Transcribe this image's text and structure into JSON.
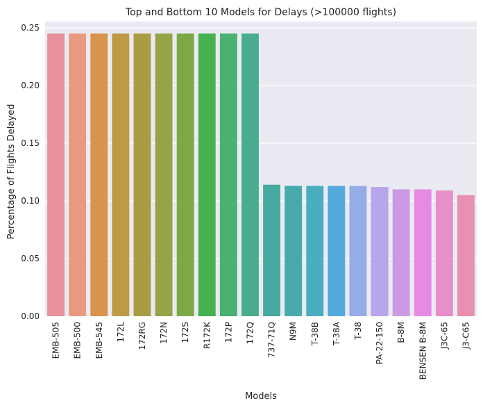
{
  "chart_data": {
    "type": "bar",
    "title": "Top and Bottom 10 Models for Delays (>100000 flights)",
    "xlabel": "Models",
    "ylabel": "Percentage of Flights Delayed",
    "ylim": [
      0,
      0.25
    ],
    "yticks": [
      "0.00",
      "0.05",
      "0.10",
      "0.15",
      "0.20",
      "0.25"
    ],
    "grid": true,
    "categories": [
      "EMB-505",
      "EMB-500",
      "EMB-545",
      "172L",
      "172RG",
      "172N",
      "172S",
      "R172K",
      "172P",
      "172Q",
      "737-71Q",
      "N9M",
      "T-38B",
      "T-38A",
      "T-38",
      "PA-22-150",
      "B-8M",
      "BENSEN B-8M",
      "J3C-65",
      "J3-C65"
    ],
    "values": [
      0.245,
      0.245,
      0.245,
      0.245,
      0.245,
      0.245,
      0.245,
      0.245,
      0.245,
      0.245,
      0.114,
      0.113,
      0.113,
      0.113,
      0.113,
      0.112,
      0.11,
      0.11,
      0.109,
      0.105
    ],
    "colors": [
      "#E8919B",
      "#E89A80",
      "#D8944D",
      "#BD9B45",
      "#A89D43",
      "#96A346",
      "#7CA846",
      "#47B04F",
      "#4BB072",
      "#49AC8C",
      "#47A99F",
      "#48A9AD",
      "#4AADC0",
      "#55A9DC",
      "#95ACE6",
      "#B8A5EB",
      "#CC9AE4",
      "#E68AE4",
      "#E88EC8",
      "#E990B2"
    ]
  }
}
